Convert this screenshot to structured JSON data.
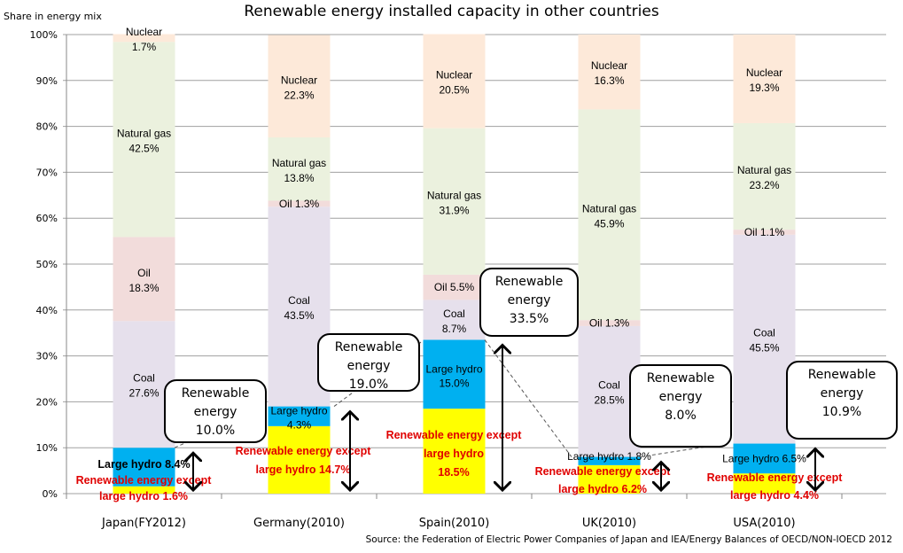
{
  "chart_data": {
    "type": "bar",
    "stacked": true,
    "title": "Renewable energy installed capacity in other countries",
    "ylabel": "Share in energy mix",
    "ylim": [
      0,
      100
    ],
    "yticks": [
      "0%",
      "10%",
      "20%",
      "30%",
      "40%",
      "50%",
      "60%",
      "70%",
      "80%",
      "90%",
      "100%"
    ],
    "grid": true,
    "categories": [
      "Japan(FY2012)",
      "Germany(2010)",
      "Spain(2010)",
      "UK(2010)",
      "USA(2010)"
    ],
    "series": [
      {
        "name": "Renewable energy except large hydro",
        "color": "#FFFF00",
        "values": [
          1.6,
          14.7,
          18.5,
          6.2,
          4.4
        ]
      },
      {
        "name": "Large hydro",
        "color": "#00B0F0",
        "values": [
          8.4,
          4.3,
          15.0,
          1.8,
          6.5
        ]
      },
      {
        "name": "Coal",
        "color": "#E6E0EC",
        "values": [
          27.6,
          43.5,
          8.7,
          28.5,
          45.5
        ]
      },
      {
        "name": "Oil",
        "color": "#F2DCDB",
        "values": [
          18.3,
          1.3,
          5.5,
          1.3,
          1.1
        ]
      },
      {
        "name": "Natural gas",
        "color": "#EBF1DE",
        "values": [
          42.5,
          13.8,
          31.9,
          45.9,
          23.2
        ]
      },
      {
        "name": "Nuclear",
        "color": "#FDE9D9",
        "values": [
          1.7,
          22.3,
          20.5,
          16.3,
          19.3
        ]
      }
    ],
    "labels": {
      "Coal": [
        "Coal",
        "27.6%",
        "Coal",
        "43.5%",
        "Coal",
        "8.7%",
        "Coal",
        "28.5%",
        "Coal",
        "45.5%"
      ],
      "Oil": [
        "Oil",
        "18.3%",
        "Oil 1.3%",
        "",
        "Oil 5.5%",
        "",
        "Oil 1.3%",
        "",
        "Oil 1.1%",
        ""
      ],
      "Natural gas": [
        "Natural gas",
        "42.5%",
        "Natural gas",
        "13.8%",
        "Natural gas",
        "31.9%",
        "Natural gas",
        "45.9%",
        "Natural gas",
        "23.2%"
      ],
      "Nuclear": [
        "Nuclear",
        "1.7%",
        "Nuclear",
        "22.3%",
        "Nuclear",
        "20.5%",
        "Nuclear",
        "16.3%",
        "Nuclear",
        "19.3%"
      ],
      "Large hydro": [
        "Large hydro 8.4%",
        "",
        "Large hydro",
        "4.3%",
        "Large hydro",
        "15.0%",
        "Large hydro 1.8%",
        "",
        "Large hydro 6.5%",
        ""
      ],
      "Renewable": [
        "Renewable energy except",
        "large hydro 1.6%",
        "Renewable energy except",
        "large hydro 14.7%",
        "Renewable energy except",
        "large hydro",
        "Renewable energy except",
        "large hydro 6.2%",
        "Renewable energy except",
        "large hydro 4.4%"
      ]
    },
    "spain_re_value": "18.5%",
    "callouts": [
      {
        "l1": "Renewable",
        "l2": "energy",
        "l3": "10.0%",
        "total": 10.0
      },
      {
        "l1": "Renewable",
        "l2": "energy",
        "l3": "19.0%",
        "total": 19.0
      },
      {
        "l1": "Renewable",
        "l2": "energy",
        "l3": "33.5%",
        "total": 33.5
      },
      {
        "l1": "Renewable",
        "l2": "energy",
        "l3": "8.0%",
        "total": 8.0
      },
      {
        "l1": "Renewable",
        "l2": "energy",
        "l3": "10.9%",
        "total": 10.9
      }
    ],
    "source": "Source: the Federation of Electric Power Companies of Japan and  IEA/Energy Balances of OECD/NON-IOECD 2012"
  }
}
